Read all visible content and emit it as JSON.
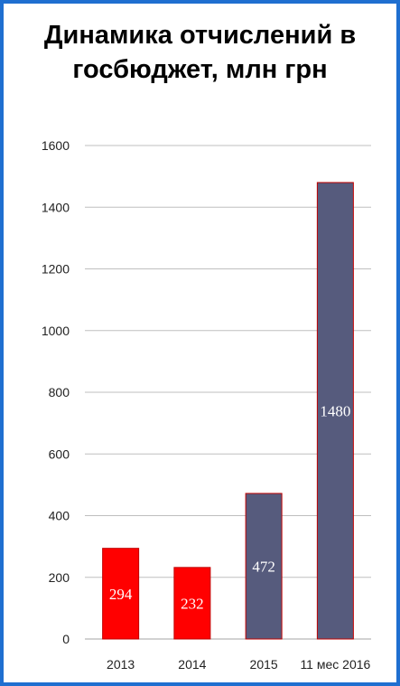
{
  "chart_data": {
    "type": "bar",
    "title": "Динамика отчислений в госбюджет, млн грн",
    "categories": [
      "2013",
      "2014",
      "2015",
      "11 мес 2016"
    ],
    "values": [
      294,
      232,
      472,
      1480
    ],
    "data_labels": [
      "294",
      "232",
      "472",
      "1480"
    ],
    "bar_colors": [
      "#ff0000",
      "#ff0000",
      "#565b7d",
      "#565b7d"
    ],
    "bar_outline": "#c00000",
    "ylim": [
      0,
      1600
    ],
    "yticks": [
      0,
      200,
      400,
      600,
      800,
      1000,
      1200,
      1400,
      1600
    ],
    "grid": true,
    "legend": "none",
    "xlabel": "",
    "ylabel": ""
  },
  "colors": {
    "frame": "#1f6fd0",
    "gridline": "#bfbfbf"
  }
}
